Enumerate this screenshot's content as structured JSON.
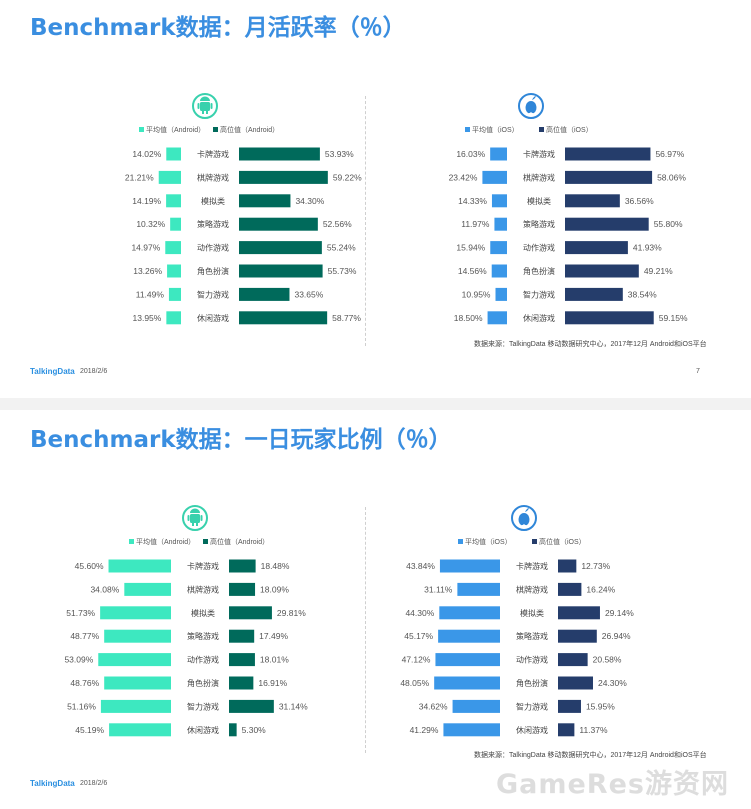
{
  "colors": {
    "android_avg": "#3de8c0",
    "android_top": "#006a5b",
    "ios_avg": "#3a97e8",
    "ios_top": "#253d6b",
    "title": "#3a8ee0"
  },
  "watermark": "GameRes游资网",
  "slides": [
    {
      "title": "Benchmark数据：月活跃率（％）",
      "footer": {
        "logo": "TalkingData",
        "date": "2018/2/6",
        "page": "7"
      },
      "source": "数据来源：TalkingData 移动数据研究中心，2017年12月 Android和iOS平台",
      "panels": [
        {
          "platform_icon": "android-icon",
          "legend_avg": "平均值（Android）",
          "legend_top": "高位值（Android）"
        },
        {
          "platform_icon": "apple-icon",
          "legend_avg": "平均值（iOS）",
          "legend_top": "高位值（iOS）"
        }
      ]
    },
    {
      "title": "Benchmark数据：一日玩家比例（％）",
      "footer": {
        "logo": "TalkingData",
        "date": "2018/2/6",
        "page": ""
      },
      "source": "数据来源：TalkingData 移动数据研究中心，2017年12月 Android和iOS平台",
      "panels": [
        {
          "platform_icon": "android-icon",
          "legend_avg": "平均值（Android）",
          "legend_top": "高位值（Android）"
        },
        {
          "platform_icon": "apple-icon",
          "legend_avg": "平均值（iOS）",
          "legend_top": "高位值（iOS）"
        }
      ]
    }
  ],
  "chart_data": [
    {
      "type": "bar",
      "title": "Benchmark数据：月活跃率（％）",
      "platform": "Android",
      "categories": [
        "卡牌游戏",
        "棋牌游戏",
        "模拟类",
        "策略游戏",
        "动作游戏",
        "角色扮演",
        "智力游戏",
        "休闲游戏"
      ],
      "series": [
        {
          "name": "平均值（Android）",
          "values": [
            14.02,
            21.21,
            14.19,
            10.32,
            14.97,
            13.26,
            11.49,
            13.95
          ]
        },
        {
          "name": "高位值（Android）",
          "values": [
            53.93,
            59.22,
            34.3,
            52.56,
            55.24,
            55.73,
            33.65,
            58.77
          ]
        }
      ]
    },
    {
      "type": "bar",
      "title": "Benchmark数据：月活跃率（％）",
      "platform": "iOS",
      "categories": [
        "卡牌游戏",
        "棋牌游戏",
        "模拟类",
        "策略游戏",
        "动作游戏",
        "角色扮演",
        "智力游戏",
        "休闲游戏"
      ],
      "series": [
        {
          "name": "平均值（iOS）",
          "values": [
            16.03,
            23.42,
            14.33,
            11.97,
            15.94,
            14.56,
            10.95,
            18.5
          ]
        },
        {
          "name": "高位值（iOS）",
          "values": [
            56.97,
            58.06,
            36.56,
            55.8,
            41.93,
            49.21,
            38.54,
            59.15
          ]
        }
      ]
    },
    {
      "type": "bar",
      "title": "Benchmark数据：一日玩家比例（％）",
      "platform": "Android",
      "categories": [
        "卡牌游戏",
        "棋牌游戏",
        "模拟类",
        "策略游戏",
        "动作游戏",
        "角色扮演",
        "智力游戏",
        "休闲游戏"
      ],
      "series": [
        {
          "name": "平均值（Android）",
          "values": [
            45.6,
            34.08,
            51.73,
            48.77,
            53.09,
            48.76,
            51.16,
            45.19
          ]
        },
        {
          "name": "高位值（Android）",
          "values": [
            18.48,
            18.09,
            29.81,
            17.49,
            18.01,
            16.91,
            31.14,
            5.3
          ]
        }
      ]
    },
    {
      "type": "bar",
      "title": "Benchmark数据：一日玩家比例（％）",
      "platform": "iOS",
      "categories": [
        "卡牌游戏",
        "棋牌游戏",
        "模拟类",
        "策略游戏",
        "动作游戏",
        "角色扮演",
        "智力游戏",
        "休闲游戏"
      ],
      "series": [
        {
          "name": "平均值（iOS）",
          "values": [
            43.84,
            31.11,
            44.3,
            45.17,
            47.12,
            48.05,
            34.62,
            41.29
          ]
        },
        {
          "name": "高位值（iOS）",
          "values": [
            12.73,
            16.24,
            29.14,
            26.94,
            20.58,
            24.3,
            15.95,
            11.37
          ]
        }
      ]
    }
  ]
}
